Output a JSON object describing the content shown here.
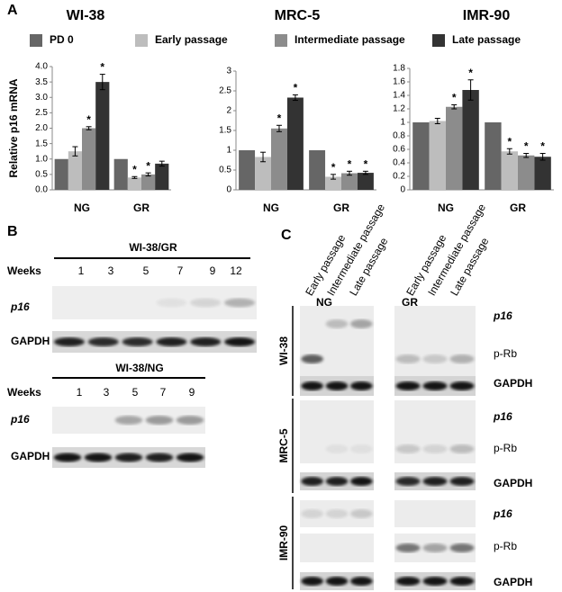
{
  "chart_data": [
    {
      "type": "bar",
      "title": "WI-38",
      "ylabel": "Relative p16 mRNA",
      "categories": [
        "NG",
        "GR"
      ],
      "ylim": [
        0,
        4
      ],
      "yticks": [
        {
          "value": 0,
          "label": "0.0"
        },
        {
          "value": 0.5,
          "label": "0.5"
        },
        {
          "value": 1,
          "label": "1.0"
        },
        {
          "value": 1.5,
          "label": "1.5"
        },
        {
          "value": 2,
          "label": "2.0"
        },
        {
          "value": 2.5,
          "label": "2.5"
        },
        {
          "value": 3,
          "label": "3.0"
        },
        {
          "value": 3.5,
          "label": "3.5"
        },
        {
          "value": 4,
          "label": "4.0"
        }
      ],
      "series": [
        {
          "name": "PD 0",
          "color": "#666666",
          "values": [
            1,
            1
          ],
          "errors": [
            0,
            0
          ],
          "annotations": [
            null,
            null
          ]
        },
        {
          "name": "Early passage",
          "color": "#bdbdbd",
          "values": [
            1.25,
            0.4
          ],
          "errors": [
            0.15,
            0.03
          ],
          "annotations": [
            null,
            "*"
          ]
        },
        {
          "name": "Intermediate passage",
          "color": "#8c8c8c",
          "values": [
            2.0,
            0.5
          ],
          "errors": [
            0.05,
            0.05
          ],
          "annotations": [
            "*",
            "*"
          ]
        },
        {
          "name": "Late passage",
          "color": "#333333",
          "values": [
            3.5,
            0.85
          ],
          "errors": [
            0.25,
            0.08
          ],
          "annotations": [
            "*",
            null
          ]
        }
      ]
    },
    {
      "type": "bar",
      "title": "MRC-5",
      "categories": [
        "NG",
        "GR"
      ],
      "ylim": [
        0,
        3
      ],
      "yticks": [
        0,
        0.5,
        1,
        1.5,
        2,
        2.5,
        3
      ],
      "series": [
        {
          "color": "#666666",
          "values": [
            1,
            1
          ],
          "errors": [
            0,
            0
          ],
          "annotations": [
            null,
            null
          ]
        },
        {
          "color": "#bdbdbd",
          "values": [
            0.83,
            0.33
          ],
          "errors": [
            0.12,
            0.06
          ],
          "annotations": [
            null,
            "*"
          ]
        },
        {
          "color": "#8c8c8c",
          "values": [
            1.55,
            0.42
          ],
          "errors": [
            0.08,
            0.05
          ],
          "annotations": [
            "*",
            "*"
          ]
        },
        {
          "color": "#333333",
          "values": [
            2.33,
            0.43
          ],
          "errors": [
            0.07,
            0.04
          ],
          "annotations": [
            "*",
            "*"
          ]
        }
      ]
    },
    {
      "type": "bar",
      "title": "IMR-90",
      "categories": [
        "NG",
        "GR"
      ],
      "ylim": [
        0,
        1.8
      ],
      "yticks": [
        0,
        0.2,
        0.4,
        0.6,
        0.8,
        1,
        1.2,
        1.4,
        1.6,
        1.8
      ],
      "series": [
        {
          "color": "#666666",
          "values": [
            1,
            1
          ],
          "errors": [
            0,
            0
          ],
          "annotations": [
            null,
            null
          ]
        },
        {
          "color": "#bdbdbd",
          "values": [
            1.02,
            0.57
          ],
          "errors": [
            0.04,
            0.04
          ],
          "annotations": [
            null,
            "*"
          ]
        },
        {
          "color": "#8c8c8c",
          "values": [
            1.23,
            0.51
          ],
          "errors": [
            0.03,
            0.03
          ],
          "annotations": [
            "*",
            "*"
          ]
        },
        {
          "color": "#333333",
          "values": [
            1.48,
            0.49
          ],
          "errors": [
            0.15,
            0.05
          ],
          "annotations": [
            "*",
            "*"
          ]
        }
      ]
    }
  ],
  "panel_labels": [
    "A",
    "B",
    "C"
  ],
  "panel_b": {
    "groups": [
      {
        "title": "WI-38/GR",
        "weeks_label": "Weeks",
        "weeks": [
          1,
          3,
          5,
          7,
          9,
          12
        ],
        "rows": [
          "p16",
          "GAPDH"
        ]
      },
      {
        "title": "WI-38/NG",
        "weeks_label": "Weeks",
        "weeks": [
          1,
          3,
          5,
          7,
          9
        ],
        "rows": [
          "p16",
          "GAPDH"
        ]
      }
    ]
  },
  "panel_c": {
    "lanes": [
      "Early passage",
      "Intermediate passage",
      "Late passage",
      "Early passage",
      "Intermediate passage",
      "Late passage"
    ],
    "conditions": [
      "NG",
      "GR"
    ],
    "cell_lines": [
      {
        "name": "WI-38",
        "rows": [
          "p16",
          "p-Rb",
          "GAPDH"
        ]
      },
      {
        "name": "MRC-5",
        "rows": [
          "p16",
          "p-Rb",
          "GAPDH"
        ]
      },
      {
        "name": "IMR-90",
        "rows": [
          "p16",
          "p-Rb",
          "GAPDH"
        ]
      }
    ]
  }
}
